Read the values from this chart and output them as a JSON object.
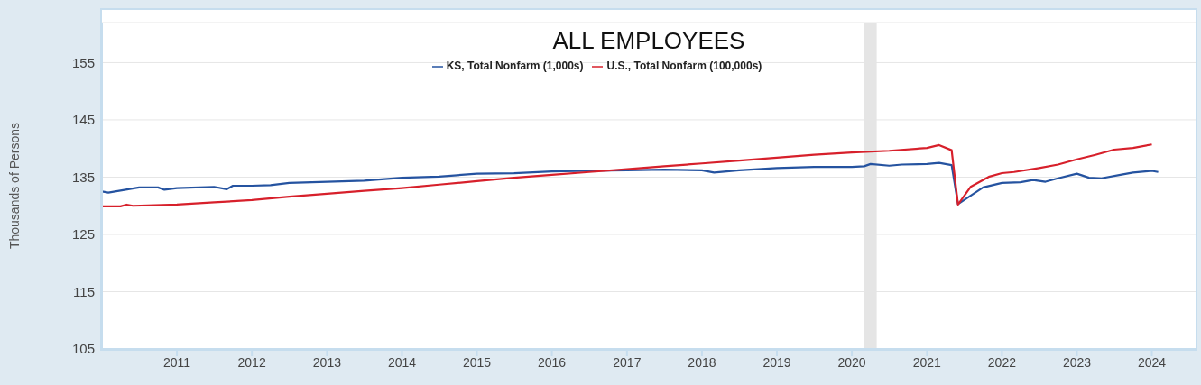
{
  "chart_data": {
    "type": "line",
    "title": "ALL EMPLOYEES",
    "ylabel": "Thousands of Persons",
    "series": [
      {
        "name": "KS, Total Nonfarm (1,000s)",
        "color": "#2553a0",
        "x": [
          "2010-01",
          "2010-02",
          "2010-07",
          "2010-10",
          "2010-11",
          "2011-01",
          "2011-07",
          "2011-09",
          "2011-10",
          "2012-01",
          "2012-04",
          "2012-07",
          "2013-01",
          "2013-07",
          "2014-01",
          "2014-07",
          "2015-01",
          "2015-07",
          "2016-01",
          "2016-07",
          "2017-01",
          "2017-07",
          "2018-01",
          "2018-03",
          "2018-07",
          "2019-01",
          "2019-07",
          "2020-01",
          "2020-03",
          "2020-04",
          "2020-07",
          "2020-09",
          "2021-01",
          "2021-03",
          "2021-05",
          "2021-06",
          "2021-10",
          "2022-01",
          "2022-04",
          "2022-06",
          "2022-08",
          "2022-10",
          "2023-01",
          "2023-03",
          "2023-05",
          "2023-08",
          "2023-10",
          "2024-01",
          "2024-02"
        ],
        "values": [
          132.5,
          132.3,
          133.2,
          133.2,
          132.8,
          133.1,
          133.3,
          132.9,
          133.5,
          133.5,
          133.6,
          134.0,
          134.2,
          134.4,
          134.9,
          135.1,
          135.6,
          135.7,
          136.0,
          136.1,
          136.2,
          136.3,
          136.2,
          135.8,
          136.2,
          136.6,
          136.8,
          136.8,
          136.9,
          137.3,
          137.0,
          137.2,
          137.3,
          137.5,
          137.1,
          130.3,
          133.2,
          134.0,
          134.1,
          134.5,
          134.2,
          134.8,
          135.6,
          134.9,
          134.8,
          135.4,
          135.8,
          136.1,
          135.9
        ]
      },
      {
        "name": "U.S., Total Nonfarm (100,000s)",
        "color": "#d7202b",
        "x": [
          "2010-01",
          "2010-04",
          "2010-05",
          "2010-06",
          "2011-01",
          "2011-07",
          "2012-01",
          "2012-07",
          "2013-01",
          "2013-07",
          "2014-01",
          "2014-07",
          "2015-01",
          "2015-07",
          "2016-01",
          "2016-07",
          "2017-01",
          "2017-07",
          "2018-01",
          "2018-07",
          "2019-01",
          "2019-07",
          "2020-01",
          "2020-07",
          "2021-01",
          "2021-03",
          "2021-05",
          "2021-06",
          "2021-08",
          "2021-11",
          "2022-01",
          "2022-03",
          "2022-07",
          "2022-10",
          "2023-01",
          "2023-04",
          "2023-07",
          "2023-10",
          "2024-01"
        ],
        "values": [
          129.9,
          129.9,
          130.2,
          130.0,
          130.2,
          130.6,
          131.0,
          131.6,
          132.1,
          132.6,
          133.1,
          133.7,
          134.3,
          134.9,
          135.4,
          135.9,
          136.4,
          136.9,
          137.4,
          137.9,
          138.4,
          138.9,
          139.3,
          139.6,
          140.1,
          140.6,
          139.7,
          130.2,
          133.3,
          135.1,
          135.7,
          135.9,
          136.6,
          137.2,
          138.1,
          138.9,
          139.8,
          140.1,
          140.7
        ]
      }
    ],
    "xlim": [
      "2010-01",
      "2024-08"
    ],
    "xticks": [
      "2011",
      "2012",
      "2013",
      "2014",
      "2015",
      "2016",
      "2017",
      "2018",
      "2019",
      "2020",
      "2021",
      "2022",
      "2023",
      "2024"
    ],
    "ylim": [
      105,
      162
    ],
    "yticks": [
      105,
      115,
      125,
      135,
      145,
      155
    ],
    "bands": [
      {
        "axis": "x",
        "from": "2020-03",
        "to": "2020-05",
        "color": "#e5e5e5"
      }
    ],
    "grid": "y",
    "legend": "top",
    "marker": "none",
    "line_style": "solid"
  }
}
